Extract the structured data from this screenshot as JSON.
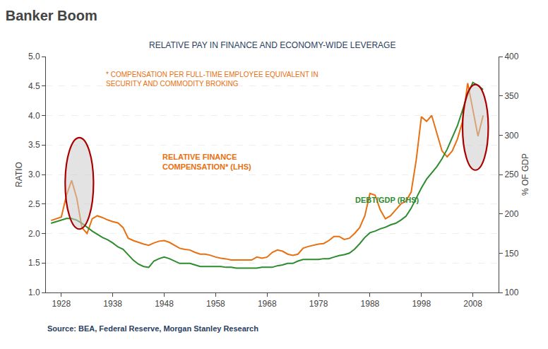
{
  "chart_data": {
    "type": "line",
    "title": "Banker Boom",
    "subtitle": "RELATIVE PAY IN FINANCE AND ECONOMY-WIDE LEVERAGE",
    "annotation": "* COMPENSATION PER FULL-TIME EMPLOYEE EQUIVALENT IN\nSECURITY AND COMMODITY BROKING",
    "source": "Source: BEA, Federal Reserve, Morgan Stanley Research",
    "ylabel": "RATIO",
    "y2label": "% OF GDP",
    "grid": true,
    "xlim": [
      1925,
      2013
    ],
    "xticks": [
      1928,
      1938,
      1948,
      1958,
      1968,
      1978,
      1988,
      1998,
      2008
    ],
    "ylim": [
      1.0,
      5.0
    ],
    "yticks": [
      {
        "value": 1.0,
        "label": "1.0"
      },
      1.5,
      {
        "value": 2.0,
        "label": "2.0"
      },
      2.5,
      {
        "value": 3.0,
        "label": "3.0"
      },
      3.5,
      {
        "value": 4.0,
        "label": "4.0"
      },
      4.5,
      {
        "value": 5.0,
        "label": "5.0"
      }
    ],
    "y2lim": [
      100,
      400
    ],
    "y2ticks": [
      100,
      150,
      200,
      250,
      300,
      350,
      400
    ],
    "series": [
      {
        "name": "RELATIVE FINANCE\nCOMPENSATION* (LHS)",
        "color": "#E87010",
        "axis": "y",
        "x": [
          1926,
          1927,
          1928,
          1929,
          1930,
          1931,
          1932,
          1933,
          1934,
          1935,
          1936,
          1937,
          1938,
          1939,
          1940,
          1941,
          1942,
          1943,
          1944,
          1945,
          1946,
          1947,
          1948,
          1949,
          1950,
          1951,
          1952,
          1953,
          1954,
          1955,
          1956,
          1957,
          1958,
          1959,
          1960,
          1961,
          1962,
          1963,
          1964,
          1965,
          1966,
          1967,
          1968,
          1969,
          1970,
          1971,
          1972,
          1973,
          1974,
          1975,
          1976,
          1977,
          1978,
          1979,
          1980,
          1981,
          1982,
          1983,
          1984,
          1985,
          1986,
          1987,
          1988,
          1989,
          1990,
          1991,
          1992,
          1993,
          1994,
          1995,
          1996,
          1997,
          1998,
          1999,
          2000,
          2001,
          2002,
          2003,
          2004,
          2005,
          2006,
          2007,
          2008,
          2009,
          2010
        ],
        "values": [
          2.22,
          2.25,
          2.28,
          2.65,
          2.9,
          2.6,
          2.1,
          2.0,
          2.25,
          2.3,
          2.27,
          2.23,
          2.2,
          2.18,
          2.1,
          1.92,
          1.88,
          1.85,
          1.82,
          1.8,
          1.84,
          1.87,
          1.88,
          1.85,
          1.8,
          1.75,
          1.73,
          1.72,
          1.68,
          1.65,
          1.65,
          1.63,
          1.6,
          1.58,
          1.57,
          1.55,
          1.55,
          1.55,
          1.55,
          1.55,
          1.6,
          1.58,
          1.6,
          1.68,
          1.72,
          1.7,
          1.65,
          1.63,
          1.65,
          1.75,
          1.78,
          1.8,
          1.82,
          1.83,
          1.88,
          1.95,
          1.95,
          1.9,
          1.92,
          2.0,
          2.1,
          2.3,
          2.68,
          2.65,
          2.4,
          2.25,
          2.3,
          2.4,
          2.5,
          2.55,
          2.7,
          3.25,
          3.98,
          3.9,
          4.0,
          3.7,
          3.4,
          3.3,
          3.4,
          3.6,
          3.9,
          4.55,
          4.1,
          3.65,
          4.0
        ]
      },
      {
        "name": "DEBT/GDP (RHS)",
        "color": "#2E8B2E",
        "axis": "y2",
        "x": [
          1926,
          1927,
          1928,
          1929,
          1930,
          1931,
          1932,
          1933,
          1934,
          1935,
          1936,
          1937,
          1938,
          1939,
          1940,
          1941,
          1942,
          1943,
          1944,
          1945,
          1946,
          1947,
          1948,
          1949,
          1950,
          1951,
          1952,
          1953,
          1954,
          1955,
          1956,
          1957,
          1958,
          1959,
          1960,
          1961,
          1962,
          1963,
          1964,
          1965,
          1966,
          1967,
          1968,
          1969,
          1970,
          1971,
          1972,
          1973,
          1974,
          1975,
          1976,
          1977,
          1978,
          1979,
          1980,
          1981,
          1982,
          1983,
          1984,
          1985,
          1986,
          1987,
          1988,
          1989,
          1990,
          1991,
          1992,
          1993,
          1994,
          1995,
          1996,
          1997,
          1998,
          1999,
          2000,
          2001,
          2002,
          2003,
          2004,
          2005,
          2006,
          2007,
          2008,
          2009,
          2010
        ],
        "values": [
          188,
          190,
          192,
          194,
          194,
          192,
          188,
          183,
          178,
          174,
          170,
          167,
          163,
          158,
          155,
          148,
          141,
          136,
          133,
          132,
          140,
          143,
          145,
          143,
          140,
          137,
          137,
          137,
          135,
          133,
          133,
          133,
          133,
          133,
          132,
          132,
          131,
          131,
          131,
          131,
          131,
          132,
          132,
          132,
          134,
          135,
          137,
          137,
          140,
          142,
          142,
          142,
          142,
          143,
          143,
          145,
          147,
          148,
          150,
          155,
          162,
          170,
          176,
          178,
          181,
          183,
          186,
          188,
          192,
          197,
          207,
          220,
          233,
          244,
          252,
          260,
          270,
          282,
          297,
          312,
          332,
          352,
          367,
          363,
          358
        ]
      }
    ],
    "ellipses": [
      {
        "x": 1931.5,
        "y": 2.85,
        "width": 5.5,
        "height": 1.55,
        "color": "#AA0000"
      },
      {
        "x": 2008.5,
        "y": 3.8,
        "width": 5.0,
        "height": 1.45,
        "color": "#AA0000"
      }
    ]
  }
}
